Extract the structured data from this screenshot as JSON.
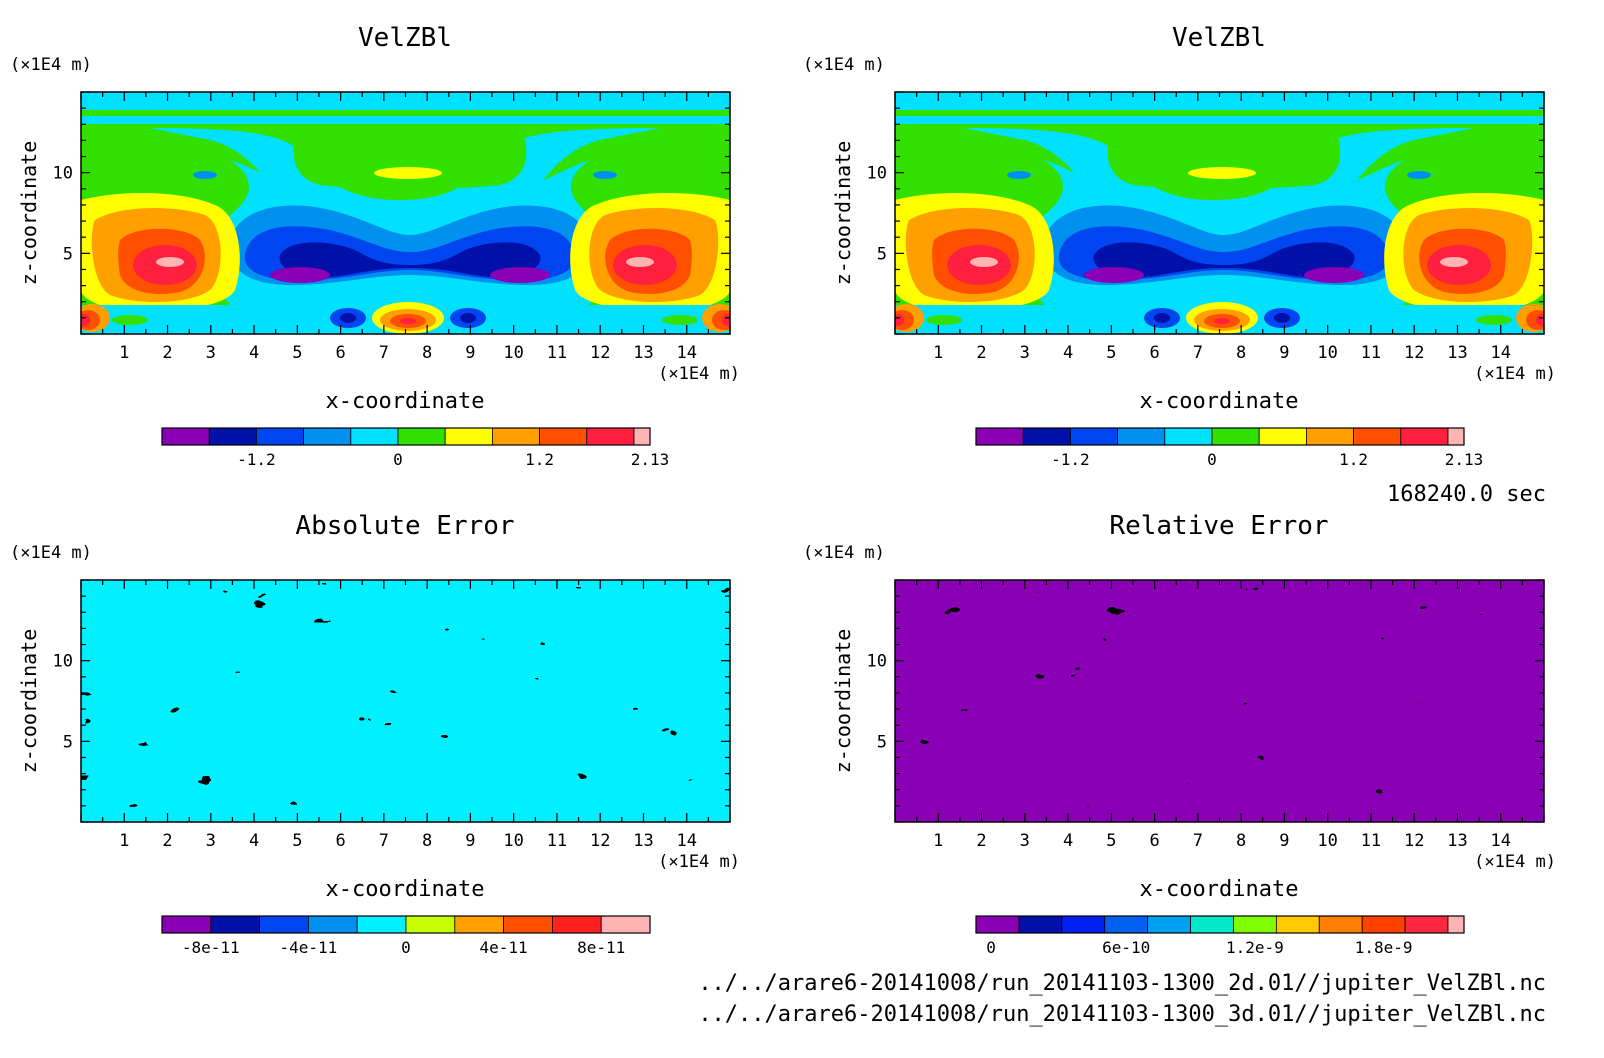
{
  "time_label": "168240.0 sec",
  "files": [
    "../../arare6-20141008/run_20141103-1300_2d.01//jupiter_VelZBl.nc",
    "../../arare6-20141008/run_20141103-1300_3d.01//jupiter_VelZBl.nc"
  ],
  "panels": [
    {
      "title": "VelZBl",
      "ylabel": "z-coordinate",
      "xlabel": "x-coordinate",
      "unit": "(×1E4 m)"
    },
    {
      "title": "VelZBl",
      "ylabel": "z-coordinate",
      "xlabel": "x-coordinate",
      "unit": "(×1E4 m)"
    },
    {
      "title": "Absolute Error",
      "ylabel": "z-coordinate",
      "xlabel": "x-coordinate",
      "unit": "(×1E4 m)"
    },
    {
      "title": "Relative Error",
      "ylabel": "z-coordinate",
      "xlabel": "x-coordinate",
      "unit": "(×1E4 m)"
    }
  ],
  "chart_data": [
    {
      "type": "heatmap",
      "title": "VelZBl",
      "xlabel": "x-coordinate",
      "ylabel": "z-coordinate",
      "xlim": [
        0,
        15
      ],
      "ylim": [
        0,
        15
      ],
      "xticks": [
        1,
        2,
        3,
        4,
        5,
        6,
        7,
        8,
        9,
        10,
        11,
        12,
        13,
        14
      ],
      "yticks": [
        5,
        10
      ],
      "colorbar": {
        "colors": [
          "#8a00b4",
          "#0010a8",
          "#0046f0",
          "#0090f0",
          "#00e0ff",
          "#32e000",
          "#ffff00",
          "#ffa000",
          "#ff5000",
          "#ff2040",
          "#ffb4b4"
        ],
        "ticks": [
          "-1.2",
          "0",
          "1.2",
          "2.13"
        ]
      }
    },
    {
      "type": "heatmap",
      "title": "VelZBl",
      "xlabel": "x-coordinate",
      "ylabel": "z-coordinate",
      "xlim": [
        0,
        15
      ],
      "ylim": [
        0,
        15
      ],
      "xticks": [
        1,
        2,
        3,
        4,
        5,
        6,
        7,
        8,
        9,
        10,
        11,
        12,
        13,
        14
      ],
      "yticks": [
        5,
        10
      ],
      "colorbar": {
        "colors": [
          "#8a00b4",
          "#0010a8",
          "#0046f0",
          "#0090f0",
          "#00e0ff",
          "#32e000",
          "#ffff00",
          "#ffa000",
          "#ff5000",
          "#ff2040",
          "#ffb4b4"
        ],
        "ticks": [
          "-1.2",
          "0",
          "1.2",
          "2.13"
        ]
      }
    },
    {
      "type": "heatmap",
      "title": "Absolute Error",
      "xlabel": "x-coordinate",
      "ylabel": "z-coordinate",
      "xlim": [
        0,
        15
      ],
      "ylim": [
        0,
        15
      ],
      "xticks": [
        1,
        2,
        3,
        4,
        5,
        6,
        7,
        8,
        9,
        10,
        11,
        12,
        13,
        14
      ],
      "yticks": [
        5,
        10
      ],
      "colorbar": {
        "colors": [
          "#8a00b4",
          "#0010a8",
          "#0046f0",
          "#0090f0",
          "#00f0ff",
          "#c8ff00",
          "#ffa000",
          "#ff5000",
          "#ff2020",
          "#ffb4b4"
        ],
        "ticks": [
          "-8e-11",
          "-4e-11",
          "0",
          "4e-11",
          "8e-11"
        ]
      }
    },
    {
      "type": "heatmap",
      "title": "Relative Error",
      "xlabel": "x-coordinate",
      "ylabel": "z-coordinate",
      "xlim": [
        0,
        15
      ],
      "ylim": [
        0,
        15
      ],
      "xticks": [
        1,
        2,
        3,
        4,
        5,
        6,
        7,
        8,
        9,
        10,
        11,
        12,
        13,
        14
      ],
      "yticks": [
        5,
        10
      ],
      "colorbar": {
        "colors": [
          "#8a00b4",
          "#0010a8",
          "#0020f0",
          "#0060f0",
          "#00a0f0",
          "#00e8c8",
          "#80ff00",
          "#ffc800",
          "#ff8000",
          "#ff4000",
          "#ff2840",
          "#ffb4b4"
        ],
        "ticks": [
          "0",
          "6e-10",
          "1.2e-9",
          "1.8e-9"
        ]
      }
    }
  ]
}
